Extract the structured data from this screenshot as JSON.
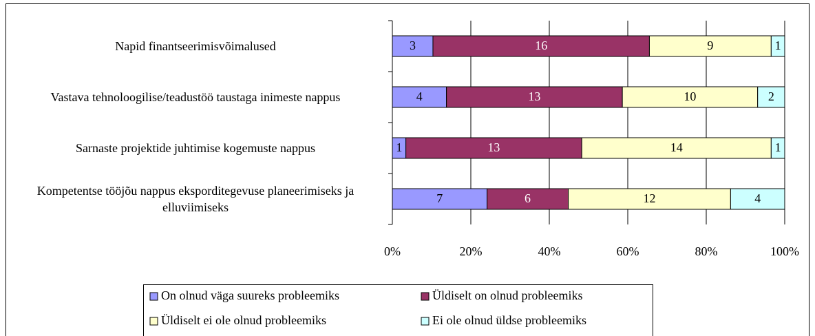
{
  "chart_data": {
    "type": "stacked_bar_percent",
    "orientation": "horizontal",
    "categories": [
      "Napid finantseerimisvõimalused",
      "Vastava tehnoloogilise/teadustöö taustaga inimeste nappus",
      "Sarnaste projektide juhtimise kogemuste nappus",
      "Kompetentse tööjõu nappus eksporditegevuse planeerimiseks ja elluviimiseks"
    ],
    "series": [
      {
        "name": "On olnud väga suureks probleemiks",
        "color": "#9999ff",
        "values": [
          3,
          4,
          1,
          7
        ]
      },
      {
        "name": "Üldiselt on olnud probleemiks",
        "color": "#993366",
        "values": [
          16,
          13,
          13,
          6
        ]
      },
      {
        "name": "Üldiselt ei ole olnud probleemiks",
        "color": "#ffffcc",
        "values": [
          9,
          10,
          14,
          12
        ]
      },
      {
        "name": "Ei ole olnud üldse probleemiks",
        "color": "#ccffff",
        "values": [
          1,
          2,
          1,
          4
        ]
      }
    ],
    "xlim": [
      0,
      100
    ],
    "xticks": [
      {
        "value": 0,
        "label": "0%"
      },
      {
        "value": 20,
        "label": "20%"
      },
      {
        "value": 40,
        "label": "40%"
      },
      {
        "value": 60,
        "label": "60%"
      },
      {
        "value": 80,
        "label": "80%"
      },
      {
        "value": 100,
        "label": "100%"
      }
    ],
    "grid": true,
    "legend": "bottom"
  }
}
